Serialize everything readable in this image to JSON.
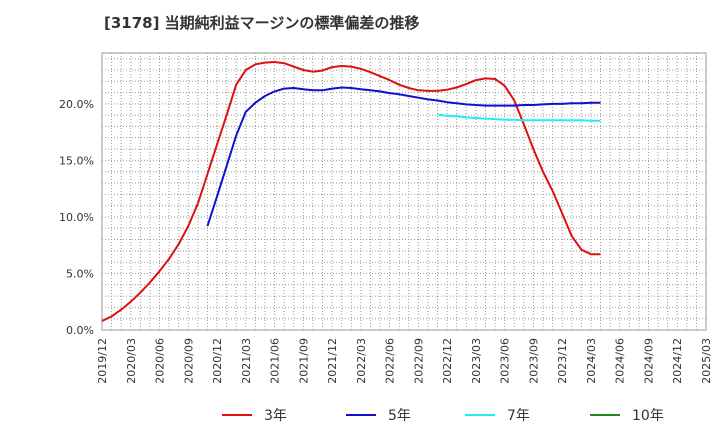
{
  "chart_data": {
    "type": "line",
    "title": "[3178]  当期純利益マージンの標準偏差の推移",
    "ylim": [
      0,
      24.5
    ],
    "yticks": [
      0,
      5,
      10,
      15,
      20
    ],
    "ytick_labels": [
      "0.0%",
      "5.0%",
      "10.0%",
      "15.0%",
      "20.0%"
    ],
    "xtick_labels": [
      "2019/12",
      "2020/03",
      "2020/06",
      "2020/09",
      "2020/12",
      "2021/03",
      "2021/06",
      "2021/09",
      "2021/12",
      "2022/03",
      "2022/06",
      "2022/09",
      "2022/12",
      "2023/03",
      "2023/06",
      "2023/09",
      "2023/12",
      "2024/03",
      "2024/06",
      "2024/09",
      "2024/12",
      "2025/03"
    ],
    "x_start": "2019/12",
    "x_end": "2025/03",
    "grid": true,
    "legend_position": "bottom",
    "series": [
      {
        "name": "3年",
        "color": "#dd1111",
        "points": [
          [
            0,
            0.8
          ],
          [
            1,
            1.2
          ],
          [
            2,
            1.8
          ],
          [
            3,
            2.5
          ],
          [
            4,
            3.3
          ],
          [
            5,
            4.2
          ],
          [
            6,
            5.2
          ],
          [
            7,
            6.3
          ],
          [
            8,
            7.6
          ],
          [
            9,
            9.2
          ],
          [
            10,
            11.2
          ],
          [
            11,
            13.8
          ],
          [
            12,
            16.4
          ],
          [
            13,
            19
          ],
          [
            14,
            21.7
          ],
          [
            15,
            23
          ],
          [
            16,
            23.5
          ],
          [
            17,
            23.65
          ],
          [
            18,
            23.7
          ],
          [
            19,
            23.6
          ],
          [
            20,
            23.3
          ],
          [
            21,
            23
          ],
          [
            22,
            22.85
          ],
          [
            23,
            22.95
          ],
          [
            24,
            23.25
          ],
          [
            25,
            23.35
          ],
          [
            26,
            23.3
          ],
          [
            27,
            23.1
          ],
          [
            28,
            22.8
          ],
          [
            29,
            22.45
          ],
          [
            30,
            22.1
          ],
          [
            31,
            21.7
          ],
          [
            32,
            21.4
          ],
          [
            33,
            21.2
          ],
          [
            34,
            21.15
          ],
          [
            35,
            21.15
          ],
          [
            36,
            21.25
          ],
          [
            37,
            21.45
          ],
          [
            38,
            21.75
          ],
          [
            39,
            22.1
          ],
          [
            40,
            22.25
          ],
          [
            41,
            22.2
          ],
          [
            42,
            21.6
          ],
          [
            43,
            20.3
          ],
          [
            44,
            18.2
          ],
          [
            45,
            16
          ],
          [
            46,
            14
          ],
          [
            47,
            12.3
          ],
          [
            48,
            10.3
          ],
          [
            49,
            8.3
          ],
          [
            50,
            7.1
          ],
          [
            51,
            6.7
          ],
          [
            52,
            6.7
          ]
        ]
      },
      {
        "name": "5年",
        "color": "#1111cc",
        "points": [
          [
            11,
            9.2
          ],
          [
            12,
            11.8
          ],
          [
            13,
            14.5
          ],
          [
            14,
            17.2
          ],
          [
            15,
            19.3
          ],
          [
            16,
            20.1
          ],
          [
            17,
            20.7
          ],
          [
            18,
            21.1
          ],
          [
            19,
            21.35
          ],
          [
            20,
            21.4
          ],
          [
            21,
            21.3
          ],
          [
            22,
            21.2
          ],
          [
            23,
            21.2
          ],
          [
            24,
            21.35
          ],
          [
            25,
            21.45
          ],
          [
            26,
            21.4
          ],
          [
            27,
            21.3
          ],
          [
            28,
            21.2
          ],
          [
            29,
            21.1
          ],
          [
            30,
            20.95
          ],
          [
            31,
            20.85
          ],
          [
            32,
            20.7
          ],
          [
            33,
            20.55
          ],
          [
            34,
            20.4
          ],
          [
            35,
            20.3
          ],
          [
            36,
            20.15
          ],
          [
            37,
            20.05
          ],
          [
            38,
            19.95
          ],
          [
            39,
            19.9
          ],
          [
            40,
            19.85
          ],
          [
            41,
            19.85
          ],
          [
            42,
            19.85
          ],
          [
            43,
            19.85
          ],
          [
            44,
            19.9
          ],
          [
            45,
            19.9
          ],
          [
            46,
            19.95
          ],
          [
            47,
            20
          ],
          [
            48,
            20
          ],
          [
            49,
            20.05
          ],
          [
            50,
            20.05
          ],
          [
            51,
            20.1
          ],
          [
            52,
            20.1
          ]
        ]
      },
      {
        "name": "7年",
        "color": "#22eeee",
        "points": [
          [
            35,
            19.05
          ],
          [
            36,
            18.95
          ],
          [
            37,
            18.9
          ],
          [
            38,
            18.8
          ],
          [
            39,
            18.75
          ],
          [
            40,
            18.7
          ],
          [
            41,
            18.65
          ],
          [
            42,
            18.6
          ],
          [
            43,
            18.6
          ],
          [
            44,
            18.55
          ],
          [
            45,
            18.55
          ],
          [
            46,
            18.55
          ],
          [
            47,
            18.55
          ],
          [
            48,
            18.55
          ],
          [
            49,
            18.55
          ],
          [
            50,
            18.55
          ],
          [
            51,
            18.5
          ],
          [
            52,
            18.5
          ]
        ]
      },
      {
        "name": "10年",
        "color": "#228822",
        "points": []
      }
    ]
  }
}
